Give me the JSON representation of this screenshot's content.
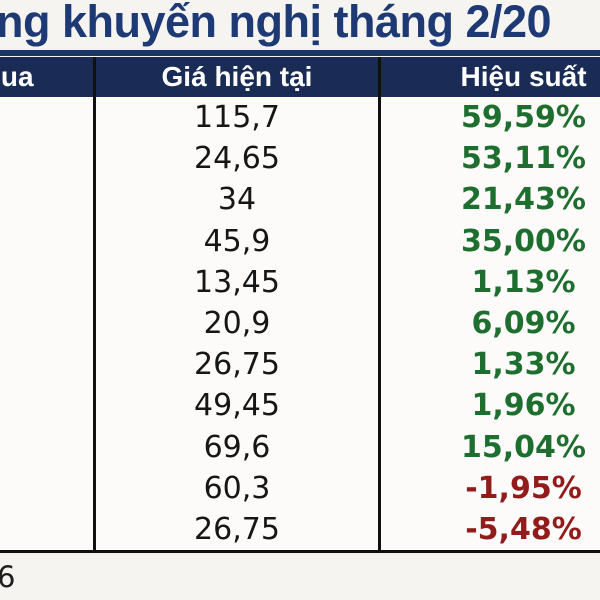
{
  "title": {
    "text": "ng khuyến nghị tháng 2/20"
  },
  "table": {
    "header": {
      "buy_price": "mua",
      "current_price": "Giá hiện tại",
      "performance": "Hiệu suất"
    },
    "rows": [
      {
        "buy": "",
        "current": "115,7",
        "perf": "59,59%",
        "trend": "up"
      },
      {
        "buy": "",
        "current": "24,65",
        "perf": "53,11%",
        "trend": "up"
      },
      {
        "buy": "",
        "current": "34",
        "perf": "21,43%",
        "trend": "up"
      },
      {
        "buy": "",
        "current": "45,9",
        "perf": "35,00%",
        "trend": "up"
      },
      {
        "buy": "",
        "current": "13,45",
        "perf": "1,13%",
        "trend": "up"
      },
      {
        "buy": "",
        "current": "20,9",
        "perf": "6,09%",
        "trend": "up"
      },
      {
        "buy": "",
        "current": "26,75",
        "perf": "1,33%",
        "trend": "up"
      },
      {
        "buy": "",
        "current": "49,45",
        "perf": "1,96%",
        "trend": "up"
      },
      {
        "buy": "",
        "current": "69,6",
        "perf": "15,04%",
        "trend": "up"
      },
      {
        "buy": "",
        "current": "60,3",
        "perf": "-1,95%",
        "trend": "down"
      },
      {
        "buy": "",
        "current": "26,75",
        "perf": "-5,48%",
        "trend": "down"
      }
    ]
  },
  "footer": {
    "note": "6"
  },
  "colors": {
    "title_blue": "#1d3a75",
    "header_bg": "#1a2c55",
    "positive_green": "#1e6e2f",
    "negative_red": "#921c1c",
    "price_black": "#161616",
    "border_black": "#101010"
  },
  "chart_data": {
    "type": "table",
    "title": "ng khuyến nghị tháng 2/20",
    "columns": [
      "mua",
      "Giá hiện tại",
      "Hiệu suất"
    ],
    "rows": [
      [
        "",
        "115,7",
        "59,59%"
      ],
      [
        "",
        "24,65",
        "53,11%"
      ],
      [
        "",
        "34",
        "21,43%"
      ],
      [
        "",
        "45,9",
        "35,00%"
      ],
      [
        "",
        "13,45",
        "1,13%"
      ],
      [
        "",
        "20,9",
        "6,09%"
      ],
      [
        "",
        "26,75",
        "1,33%"
      ],
      [
        "",
        "49,45",
        "1,96%"
      ],
      [
        "",
        "69,6",
        "15,04%"
      ],
      [
        "",
        "60,3",
        "-1,95%"
      ],
      [
        "",
        "26,75",
        "-5,48%"
      ]
    ],
    "notes": "Vietnamese stock recommendation table, cropped on left and right edges; performance values colored green (gain) or dark red (loss)"
  }
}
